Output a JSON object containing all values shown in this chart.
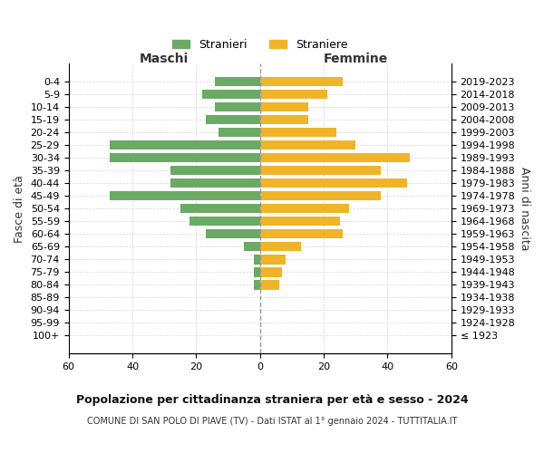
{
  "age_groups": [
    "100+",
    "95-99",
    "90-94",
    "85-89",
    "80-84",
    "75-79",
    "70-74",
    "65-69",
    "60-64",
    "55-59",
    "50-54",
    "45-49",
    "40-44",
    "35-39",
    "30-34",
    "25-29",
    "20-24",
    "15-19",
    "10-14",
    "5-9",
    "0-4"
  ],
  "birth_years": [
    "≤ 1923",
    "1924-1928",
    "1929-1933",
    "1934-1938",
    "1939-1943",
    "1944-1948",
    "1949-1953",
    "1954-1958",
    "1959-1963",
    "1964-1968",
    "1969-1973",
    "1974-1978",
    "1979-1983",
    "1984-1988",
    "1989-1993",
    "1994-1998",
    "1999-2003",
    "2004-2008",
    "2009-2013",
    "2014-2018",
    "2019-2023"
  ],
  "maschi": [
    0,
    0,
    0,
    0,
    2,
    2,
    2,
    5,
    17,
    22,
    25,
    47,
    28,
    28,
    47,
    47,
    13,
    17,
    14,
    18,
    14
  ],
  "femmine": [
    0,
    0,
    0,
    0,
    6,
    7,
    8,
    13,
    26,
    25,
    28,
    38,
    46,
    38,
    47,
    30,
    24,
    15,
    15,
    21,
    26
  ],
  "male_color": "#6aaa64",
  "female_color": "#f0b429",
  "title": "Popolazione per cittadinanza straniera per età e sesso - 2024",
  "subtitle": "COMUNE DI SAN POLO DI PIAVE (TV) - Dati ISTAT al 1° gennaio 2024 - TUTTITALIA.IT",
  "xlabel_left": "Maschi",
  "xlabel_right": "Femmine",
  "ylabel_left": "Fasce di età",
  "ylabel_right": "Anni di nascita",
  "legend_male": "Stranieri",
  "legend_female": "Straniere",
  "xlim": 60,
  "background_color": "#ffffff",
  "grid_color": "#cccccc"
}
